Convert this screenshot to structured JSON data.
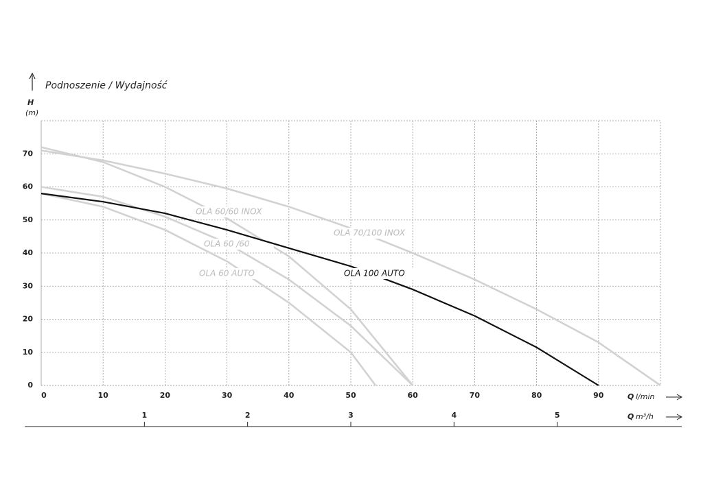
{
  "chart_data": {
    "type": "line",
    "title": "Podnoszenie / Wydajność",
    "y_label": "H",
    "y_unit": "(m)",
    "x_label": "Q",
    "x_unit": "l/min",
    "x2_label": "Q",
    "x2_unit": "m³/h",
    "xlim": [
      0,
      100
    ],
    "xticks": [
      0,
      10,
      20,
      30,
      40,
      50,
      60,
      70,
      80,
      90
    ],
    "ylim": [
      0,
      80
    ],
    "yticks": [
      0,
      10,
      20,
      30,
      40,
      50,
      60,
      70
    ],
    "x2lim": [
      0,
      6
    ],
    "x2ticks": [
      1,
      2,
      3,
      4,
      5
    ],
    "grid": true,
    "series": [
      {
        "name": "OLA 70/100 INOX",
        "color": "#d2d2d2",
        "x": [
          0,
          10,
          20,
          30,
          40,
          50,
          60,
          70,
          80,
          90,
          100
        ],
        "values": [
          71,
          68,
          64,
          59.5,
          54,
          47.5,
          40,
          32,
          23,
          13,
          0
        ]
      },
      {
        "name": "OLA 60/60 INOX",
        "color": "#d2d2d2",
        "x": [
          0,
          10,
          20,
          30,
          40,
          50,
          60
        ],
        "values": [
          72,
          67.5,
          60,
          50.5,
          39,
          23,
          0
        ]
      },
      {
        "name": "OLA 60 /60",
        "color": "#d2d2d2",
        "x": [
          0,
          10,
          20,
          30,
          40,
          50,
          60
        ],
        "values": [
          60,
          57,
          51,
          43,
          32,
          18,
          0
        ]
      },
      {
        "name": "OLA 60 AUTO",
        "color": "#d2d2d2",
        "x": [
          0,
          10,
          20,
          30,
          40,
          50,
          54
        ],
        "values": [
          58,
          54,
          47,
          37.5,
          25,
          10,
          0
        ]
      },
      {
        "name": "OLA 100 AUTO",
        "color": "#111111",
        "x": [
          0,
          10,
          20,
          30,
          40,
          50,
          60,
          70,
          80,
          90
        ],
        "values": [
          58,
          55.5,
          52,
          47,
          41.5,
          36,
          29,
          21,
          11.5,
          0
        ]
      }
    ]
  }
}
